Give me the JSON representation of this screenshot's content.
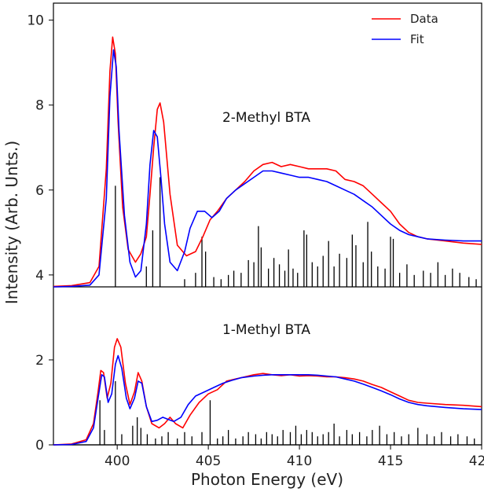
{
  "chart_data": {
    "type": "line",
    "xlabel": "Photon Energy (eV)",
    "ylabel": "Intensity (Arb. Unts.)",
    "xlim": [
      396.5,
      420
    ],
    "ylim": [
      0,
      10.4
    ],
    "x_ticks": [
      400,
      405,
      410,
      415,
      420
    ],
    "y_ticks": [
      0,
      2,
      4,
      6,
      8,
      10
    ],
    "grid": false,
    "legend_position": "top-right",
    "legend": [
      {
        "label": "Data",
        "color": "#ff0000"
      },
      {
        "label": "Fit",
        "color": "#0000ff"
      }
    ],
    "panels": [
      {
        "label": "2-Methyl BTA",
        "baseline": 3.72,
        "series": [
          {
            "name": "Data",
            "color": "#ff0000",
            "x": [
              396.5,
              397.5,
              398.5,
              399.0,
              399.4,
              399.6,
              399.75,
              399.9,
              400.05,
              400.3,
              400.6,
              401.0,
              401.3,
              401.6,
              401.8,
              402.0,
              402.2,
              402.35,
              402.55,
              402.9,
              403.3,
              403.8,
              404.3,
              404.7,
              405.1,
              405.5,
              406.0,
              406.5,
              407.0,
              407.5,
              408.0,
              408.5,
              409.0,
              409.5,
              410.0,
              410.5,
              411.0,
              411.5,
              412.0,
              412.5,
              413.0,
              413.5,
              414.0,
              414.5,
              415.0,
              415.5,
              416.0,
              416.5,
              417.0,
              418.0,
              419.0,
              420.0
            ],
            "y": [
              3.73,
              3.75,
              3.82,
              4.2,
              6.5,
              8.8,
              9.6,
              9.2,
              7.6,
              5.6,
              4.6,
              4.3,
              4.5,
              4.9,
              5.9,
              7.0,
              7.9,
              8.05,
              7.6,
              5.9,
              4.7,
              4.45,
              4.55,
              4.9,
              5.3,
              5.5,
              5.8,
              6.0,
              6.2,
              6.45,
              6.6,
              6.65,
              6.55,
              6.6,
              6.55,
              6.5,
              6.5,
              6.5,
              6.45,
              6.25,
              6.2,
              6.1,
              5.9,
              5.7,
              5.5,
              5.2,
              5.0,
              4.9,
              4.85,
              4.8,
              4.75,
              4.72
            ]
          },
          {
            "name": "Fit",
            "color": "#0000ff",
            "x": [
              396.5,
              397.5,
              398.5,
              399.0,
              399.4,
              399.6,
              399.8,
              399.95,
              400.1,
              400.4,
              400.7,
              401.0,
              401.3,
              401.6,
              401.8,
              402.0,
              402.2,
              402.4,
              402.6,
              402.9,
              403.3,
              403.7,
              404.0,
              404.4,
              404.8,
              405.2,
              405.6,
              406.0,
              406.5,
              407.0,
              407.5,
              408.0,
              408.5,
              409.0,
              409.5,
              410.0,
              410.5,
              411.0,
              411.5,
              412.0,
              412.5,
              413.0,
              413.5,
              414.0,
              414.5,
              415.0,
              415.5,
              416.0,
              416.5,
              417.0,
              418.0,
              419.0,
              420.0
            ],
            "y": [
              3.72,
              3.73,
              3.76,
              4.0,
              5.8,
              8.2,
              9.3,
              8.9,
              7.4,
              5.4,
              4.3,
              3.95,
              4.1,
              5.2,
              6.6,
              7.4,
              7.25,
              6.3,
              5.2,
              4.3,
              4.1,
              4.55,
              5.1,
              5.5,
              5.5,
              5.35,
              5.5,
              5.8,
              6.0,
              6.15,
              6.3,
              6.45,
              6.45,
              6.4,
              6.35,
              6.3,
              6.3,
              6.25,
              6.2,
              6.1,
              6.0,
              5.9,
              5.75,
              5.6,
              5.4,
              5.2,
              5.05,
              4.95,
              4.9,
              4.85,
              4.82,
              4.8,
              4.8
            ]
          }
        ],
        "sticks": [
          [
            399.9,
            6.1
          ],
          [
            401.6,
            4.2
          ],
          [
            401.95,
            5.05
          ],
          [
            402.35,
            6.3
          ],
          [
            403.7,
            3.9
          ],
          [
            404.3,
            4.05
          ],
          [
            404.65,
            4.9
          ],
          [
            404.85,
            4.55
          ],
          [
            405.3,
            3.95
          ],
          [
            405.7,
            3.9
          ],
          [
            406.1,
            4.0
          ],
          [
            406.4,
            4.1
          ],
          [
            406.8,
            4.05
          ],
          [
            407.2,
            4.35
          ],
          [
            407.5,
            4.3
          ],
          [
            407.75,
            5.15
          ],
          [
            407.9,
            4.65
          ],
          [
            408.3,
            4.15
          ],
          [
            408.6,
            4.4
          ],
          [
            408.9,
            4.25
          ],
          [
            409.2,
            4.1
          ],
          [
            409.4,
            4.6
          ],
          [
            409.65,
            4.15
          ],
          [
            409.9,
            4.05
          ],
          [
            410.25,
            5.05
          ],
          [
            410.4,
            4.95
          ],
          [
            410.7,
            4.3
          ],
          [
            411.0,
            4.2
          ],
          [
            411.3,
            4.45
          ],
          [
            411.6,
            4.8
          ],
          [
            411.9,
            4.2
          ],
          [
            412.2,
            4.5
          ],
          [
            412.6,
            4.4
          ],
          [
            412.9,
            4.95
          ],
          [
            413.1,
            4.7
          ],
          [
            413.5,
            4.3
          ],
          [
            413.75,
            5.25
          ],
          [
            413.95,
            4.55
          ],
          [
            414.3,
            4.2
          ],
          [
            414.7,
            4.15
          ],
          [
            415.0,
            4.9
          ],
          [
            415.15,
            4.85
          ],
          [
            415.5,
            4.05
          ],
          [
            415.9,
            4.25
          ],
          [
            416.3,
            4.0
          ],
          [
            416.8,
            4.1
          ],
          [
            417.2,
            4.05
          ],
          [
            417.6,
            4.3
          ],
          [
            418.0,
            4.0
          ],
          [
            418.4,
            4.15
          ],
          [
            418.8,
            4.05
          ],
          [
            419.3,
            3.95
          ],
          [
            419.7,
            3.9
          ]
        ]
      },
      {
        "label": "1-Methyl BTA",
        "baseline": 0.0,
        "series": [
          {
            "name": "Data",
            "color": "#ff0000",
            "x": [
              396.5,
              397.5,
              398.3,
              398.7,
              398.95,
              399.1,
              399.25,
              399.45,
              399.65,
              399.85,
              400.0,
              400.2,
              400.45,
              400.7,
              400.95,
              401.15,
              401.35,
              401.6,
              401.9,
              402.3,
              402.6,
              402.9,
              403.2,
              403.6,
              404.0,
              404.5,
              405.0,
              405.5,
              406.0,
              406.5,
              407.0,
              407.5,
              408.0,
              408.5,
              409.0,
              409.5,
              410.0,
              410.5,
              411.0,
              411.5,
              412.0,
              412.5,
              413.0,
              413.5,
              414.0,
              414.5,
              415.0,
              415.5,
              416.0,
              416.5,
              417.0,
              418.0,
              419.0,
              420.0
            ],
            "y": [
              0.0,
              0.02,
              0.12,
              0.5,
              1.25,
              1.75,
              1.7,
              1.1,
              1.45,
              2.3,
              2.5,
              2.3,
              1.45,
              0.95,
              1.25,
              1.7,
              1.5,
              0.9,
              0.5,
              0.4,
              0.5,
              0.65,
              0.5,
              0.4,
              0.7,
              1.0,
              1.2,
              1.3,
              1.5,
              1.55,
              1.6,
              1.65,
              1.68,
              1.65,
              1.63,
              1.65,
              1.62,
              1.63,
              1.62,
              1.6,
              1.6,
              1.58,
              1.55,
              1.5,
              1.42,
              1.35,
              1.25,
              1.15,
              1.05,
              1.0,
              0.98,
              0.95,
              0.93,
              0.9
            ]
          },
          {
            "name": "Fit",
            "color": "#0000ff",
            "x": [
              396.5,
              397.5,
              398.3,
              398.7,
              398.95,
              399.15,
              399.3,
              399.5,
              399.7,
              399.9,
              400.05,
              400.25,
              400.5,
              400.7,
              400.95,
              401.15,
              401.35,
              401.6,
              401.9,
              402.2,
              402.5,
              402.8,
              403.1,
              403.5,
              403.9,
              404.3,
              404.8,
              405.3,
              405.8,
              406.3,
              406.8,
              407.5,
              408.0,
              408.5,
              409.0,
              409.5,
              410.0,
              410.5,
              411.0,
              411.5,
              412.0,
              412.5,
              413.0,
              413.5,
              414.0,
              414.5,
              415.0,
              415.5,
              416.0,
              416.5,
              417.0,
              418.0,
              419.0,
              420.0
            ],
            "y": [
              0.0,
              0.01,
              0.08,
              0.4,
              1.1,
              1.65,
              1.6,
              1.0,
              1.2,
              1.9,
              2.1,
              1.8,
              1.1,
              0.85,
              1.1,
              1.5,
              1.45,
              0.9,
              0.55,
              0.58,
              0.65,
              0.6,
              0.55,
              0.65,
              0.95,
              1.15,
              1.25,
              1.35,
              1.45,
              1.52,
              1.58,
              1.62,
              1.64,
              1.65,
              1.65,
              1.65,
              1.65,
              1.65,
              1.64,
              1.62,
              1.6,
              1.55,
              1.5,
              1.43,
              1.35,
              1.27,
              1.18,
              1.08,
              1.0,
              0.95,
              0.92,
              0.88,
              0.85,
              0.83
            ]
          }
        ],
        "sticks": [
          [
            399.05,
            1.05
          ],
          [
            399.3,
            0.35
          ],
          [
            399.9,
            1.5
          ],
          [
            400.25,
            0.25
          ],
          [
            400.85,
            0.45
          ],
          [
            401.1,
            0.65
          ],
          [
            401.3,
            0.4
          ],
          [
            401.65,
            0.25
          ],
          [
            402.1,
            0.15
          ],
          [
            402.45,
            0.2
          ],
          [
            402.8,
            0.3
          ],
          [
            403.3,
            0.15
          ],
          [
            403.7,
            0.3
          ],
          [
            404.1,
            0.2
          ],
          [
            404.65,
            0.3
          ],
          [
            405.1,
            1.05
          ],
          [
            405.5,
            0.15
          ],
          [
            405.8,
            0.2
          ],
          [
            406.1,
            0.35
          ],
          [
            406.5,
            0.15
          ],
          [
            406.9,
            0.2
          ],
          [
            407.2,
            0.3
          ],
          [
            407.6,
            0.25
          ],
          [
            407.9,
            0.15
          ],
          [
            408.2,
            0.3
          ],
          [
            408.5,
            0.25
          ],
          [
            408.8,
            0.2
          ],
          [
            409.1,
            0.35
          ],
          [
            409.5,
            0.3
          ],
          [
            409.8,
            0.45
          ],
          [
            410.1,
            0.25
          ],
          [
            410.4,
            0.35
          ],
          [
            410.7,
            0.3
          ],
          [
            411.0,
            0.2
          ],
          [
            411.3,
            0.25
          ],
          [
            411.6,
            0.3
          ],
          [
            411.9,
            0.5
          ],
          [
            412.2,
            0.2
          ],
          [
            412.6,
            0.35
          ],
          [
            412.9,
            0.25
          ],
          [
            413.3,
            0.3
          ],
          [
            413.7,
            0.2
          ],
          [
            414.0,
            0.35
          ],
          [
            414.4,
            0.45
          ],
          [
            414.8,
            0.25
          ],
          [
            415.2,
            0.3
          ],
          [
            415.6,
            0.2
          ],
          [
            416.0,
            0.25
          ],
          [
            416.5,
            0.4
          ],
          [
            417.0,
            0.25
          ],
          [
            417.4,
            0.2
          ],
          [
            417.8,
            0.3
          ],
          [
            418.3,
            0.2
          ],
          [
            418.7,
            0.25
          ],
          [
            419.2,
            0.2
          ],
          [
            419.6,
            0.15
          ]
        ]
      }
    ]
  }
}
